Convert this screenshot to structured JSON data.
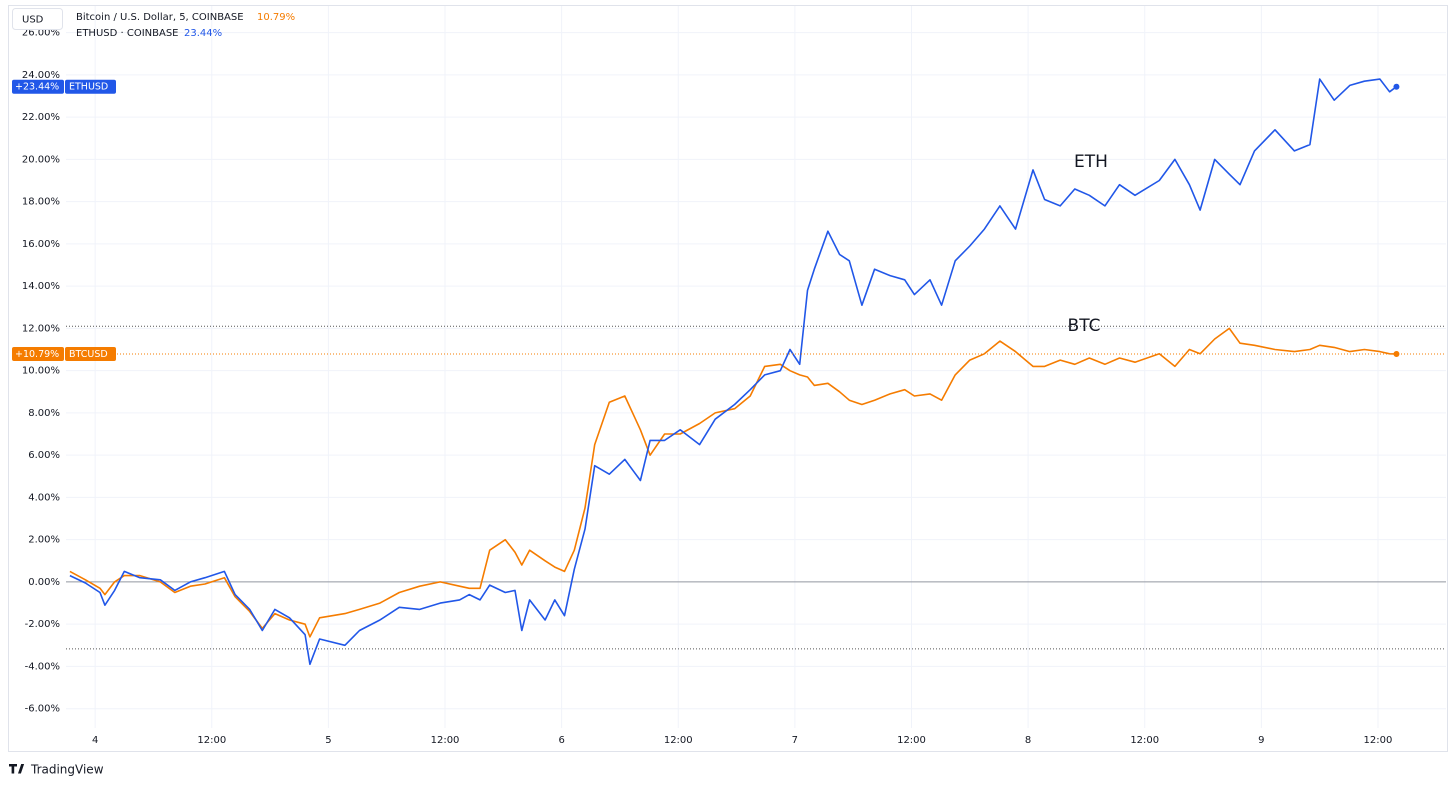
{
  "chart_data": {
    "type": "line",
    "currency": "USD",
    "footer": "TradingView",
    "annotations": [
      "ETH",
      "BTC"
    ],
    "xlim": [
      -3,
      139
    ],
    "ylim": [
      -8.05,
      27.26
    ],
    "xticks": [
      {
        "value": 0,
        "label": "4"
      },
      {
        "value": 12,
        "label": "12:00"
      },
      {
        "value": 24,
        "label": "5"
      },
      {
        "value": 36,
        "label": "12:00"
      },
      {
        "value": 48,
        "label": "6"
      },
      {
        "value": 60,
        "label": "12:00"
      },
      {
        "value": 72,
        "label": "7"
      },
      {
        "value": 84,
        "label": "12:00"
      },
      {
        "value": 96,
        "label": "8"
      },
      {
        "value": 108,
        "label": "12:00"
      },
      {
        "value": 120,
        "label": "9"
      },
      {
        "value": 132,
        "label": "12:00"
      }
    ],
    "yticks": [
      {
        "value": -6,
        "label": "-6.00%"
      },
      {
        "value": -4,
        "label": "-4.00%"
      },
      {
        "value": -2,
        "label": "-2.00%"
      },
      {
        "value": 0,
        "label": "0.00%"
      },
      {
        "value": 2,
        "label": "2.00%"
      },
      {
        "value": 4,
        "label": "4.00%"
      },
      {
        "value": 6,
        "label": "6.00%"
      },
      {
        "value": 8,
        "label": "8.00%"
      },
      {
        "value": 10,
        "label": "10.00%"
      },
      {
        "value": 12,
        "label": "12.00%"
      },
      {
        "value": 14,
        "label": "14.00%"
      },
      {
        "value": 16,
        "label": "16.00%"
      },
      {
        "value": 18,
        "label": "18.00%"
      },
      {
        "value": 20,
        "label": "20.00%"
      },
      {
        "value": 22,
        "label": "22.00%"
      },
      {
        "value": 24,
        "label": "24.00%"
      },
      {
        "value": 26,
        "label": "26.00%"
      }
    ],
    "grid": true,
    "baseline": 0,
    "reference_lines": [
      12.1,
      -3.17
    ],
    "x": [
      -2.6,
      -1.0,
      0.5,
      1.0,
      2,
      3,
      4.6,
      6.7,
      8.2,
      9.8,
      11.3,
      13.3,
      14.4,
      15.9,
      17.2,
      18.5,
      20,
      21.6,
      22.1,
      23.1,
      25.7,
      27.2,
      29.3,
      31.3,
      33.4,
      35.5,
      37.5,
      38.5,
      39.6,
      40.6,
      42.2,
      43.2,
      43.9,
      44.7,
      46.3,
      47.3,
      48.3,
      49.3,
      50.4,
      51.4,
      52.9,
      54.5,
      56.1,
      57.1,
      58.6,
      60.2,
      62.2,
      63.8,
      65.8,
      67.4,
      68.9,
      70.5,
      71.5,
      72.5,
      73.3,
      74.0,
      75.4,
      76.6,
      77.6,
      78.9,
      80.2,
      81.8,
      83.3,
      84.3,
      85.9,
      87.1,
      88.5,
      90.0,
      91.5,
      93.1,
      94.7,
      96.5,
      97.7,
      99.3,
      100.8,
      102.3,
      103.9,
      105.4,
      107.0,
      109.5,
      111.1,
      112.6,
      113.7,
      115.2,
      116.7,
      117.8,
      119.3,
      121.4,
      123.4,
      125.0,
      126.0,
      127.5,
      129.1,
      130.6,
      132.2,
      133.2,
      133.9
    ],
    "series": [
      {
        "name": "BTCUSD",
        "legend_label": "Bitcoin / U.S. Dollar, 5, COINBASE",
        "legend_value_label": "10.79%",
        "last_value_label": "+10.79%",
        "color": "#f57c00",
        "values": [
          0.5,
          0.1,
          -0.3,
          -0.6,
          0.0,
          0.3,
          0.3,
          0.0,
          -0.5,
          -0.2,
          -0.1,
          0.2,
          -0.7,
          -1.4,
          -2.2,
          -1.5,
          -1.8,
          -2.0,
          -2.6,
          -1.7,
          -1.5,
          -1.3,
          -1.0,
          -0.5,
          -0.2,
          0.0,
          -0.2,
          -0.3,
          -0.3,
          1.5,
          2.0,
          1.4,
          0.8,
          1.5,
          1.0,
          0.7,
          0.5,
          1.5,
          3.5,
          6.5,
          8.5,
          8.8,
          7.2,
          6.0,
          7.0,
          7.0,
          7.5,
          8.0,
          8.2,
          8.8,
          10.2,
          10.3,
          10.0,
          9.8,
          9.7,
          9.3,
          9.4,
          9.0,
          8.6,
          8.4,
          8.6,
          8.9,
          9.1,
          8.8,
          8.9,
          8.6,
          9.8,
          10.5,
          10.8,
          11.4,
          10.9,
          10.2,
          10.2,
          10.5,
          10.3,
          10.6,
          10.3,
          10.6,
          10.4,
          10.8,
          10.2,
          11.0,
          10.8,
          11.5,
          12.0,
          11.3,
          11.2,
          11.0,
          10.9,
          11.0,
          11.2,
          11.1,
          10.9,
          11.0,
          10.9,
          10.8,
          10.79
        ]
      },
      {
        "name": "ETHUSD",
        "legend_label": "ETHUSD · COINBASE",
        "legend_value_label": "23.44%",
        "last_value_label": "+23.44%",
        "color": "#2157e8",
        "values": [
          0.3,
          -0.05,
          -0.5,
          -1.1,
          -0.4,
          0.5,
          0.2,
          0.1,
          -0.4,
          0,
          0.2,
          0.5,
          -0.6,
          -1.3,
          -2.3,
          -1.3,
          -1.7,
          -2.5,
          -3.9,
          -2.7,
          -3.0,
          -2.3,
          -1.8,
          -1.2,
          -1.3,
          -1.0,
          -0.85,
          -0.6,
          -0.85,
          -0.15,
          -0.5,
          -0.4,
          -2.3,
          -0.85,
          -1.8,
          -0.85,
          -1.6,
          0.6,
          2.5,
          5.5,
          5.1,
          5.8,
          4.8,
          6.7,
          6.7,
          7.2,
          6.5,
          7.7,
          8.4,
          9.1,
          9.8,
          10.0,
          11.0,
          10.3,
          13.8,
          14.8,
          16.6,
          15.5,
          15.2,
          13.1,
          14.8,
          14.5,
          14.3,
          13.6,
          14.3,
          13.1,
          15.2,
          15.9,
          16.7,
          17.8,
          16.7,
          19.5,
          18.1,
          17.8,
          18.6,
          18.3,
          17.8,
          18.8,
          18.3,
          19.0,
          20.0,
          18.8,
          17.6,
          20.0,
          19.3,
          18.8,
          20.4,
          21.4,
          20.4,
          20.7,
          23.8,
          22.8,
          23.5,
          23.7,
          23.8,
          23.2,
          23.44
        ]
      }
    ]
  }
}
